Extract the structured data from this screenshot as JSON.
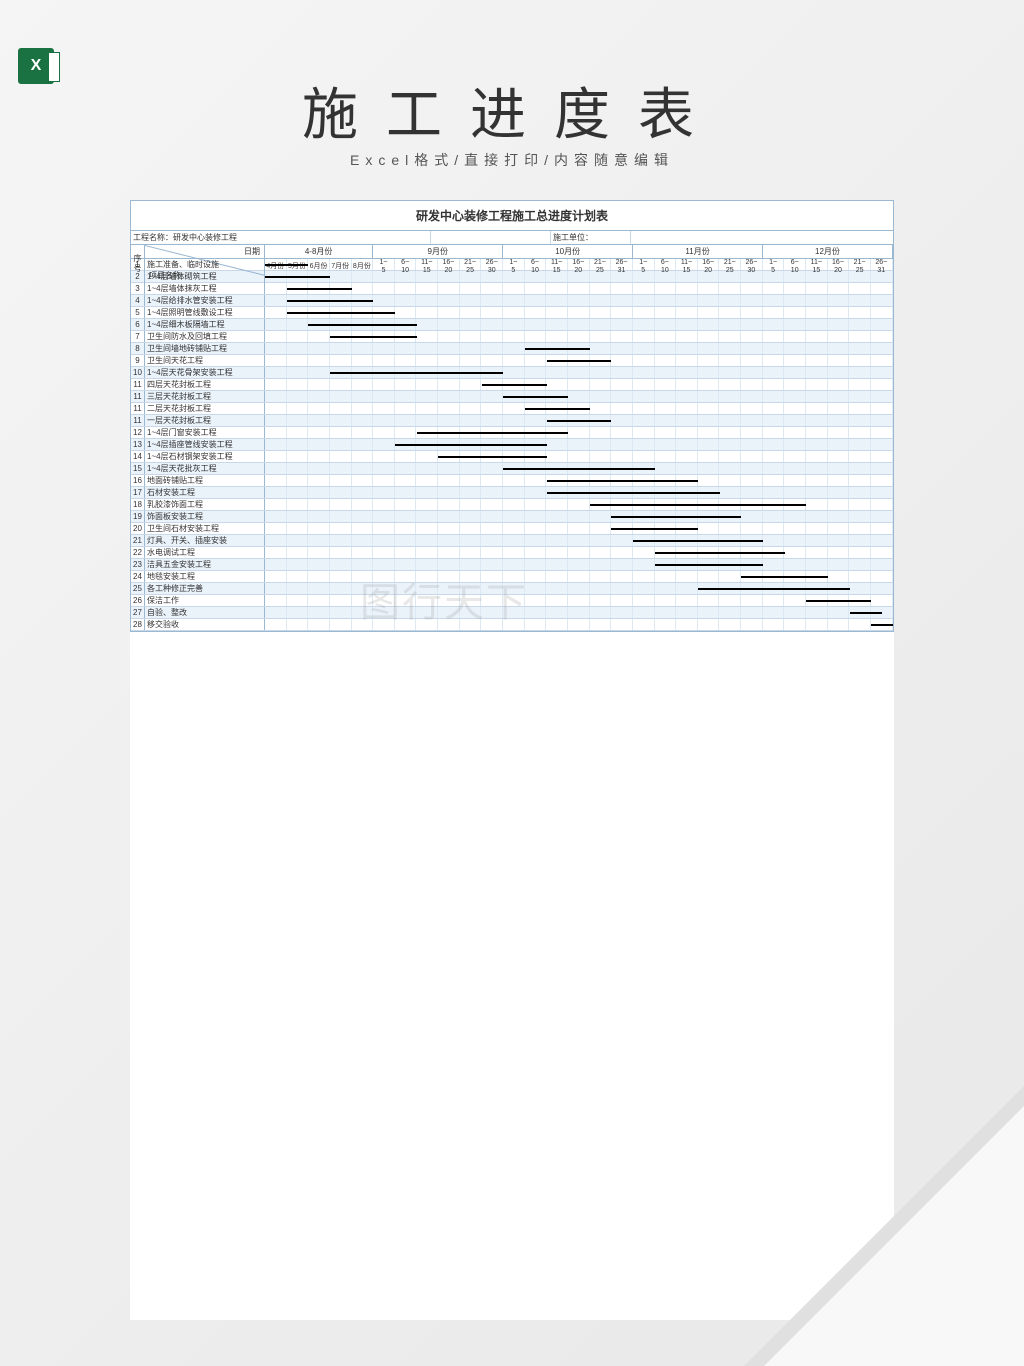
{
  "page": {
    "title": "施工进度表",
    "subtitle": "Excel格式/直接打印/内容随意编辑"
  },
  "sheet": {
    "title": "研发中心装修工程施工总进度计划表",
    "project_label": "工程名称：研发中心装修工程",
    "unit_label": "施工单位：",
    "seq_header": "序号",
    "name_header": "项目名称",
    "date_header": "日期",
    "months": [
      {
        "label": "4-8月份",
        "periods": [
          "4月份",
          "5月份",
          "6月份",
          "7月份",
          "8月份"
        ],
        "span": 5
      },
      {
        "label": "9月份",
        "periods": [
          "1~5",
          "6~10",
          "11~15",
          "16~20",
          "21~25",
          "26~30"
        ],
        "span": 6
      },
      {
        "label": "10月份",
        "periods": [
          "1~5",
          "6~10",
          "11~15",
          "16~20",
          "21~25",
          "26~31"
        ],
        "span": 6
      },
      {
        "label": "11月份",
        "periods": [
          "1~5",
          "6~10",
          "11~15",
          "16~20",
          "21~25",
          "26~30"
        ],
        "span": 6
      },
      {
        "label": "12月份",
        "periods": [
          "1~5",
          "6~10",
          "11~15",
          "16~20",
          "21~25",
          "26~31"
        ],
        "span": 6
      }
    ],
    "total_periods": 29,
    "rows": [
      {
        "seq": "1",
        "name": "施工准备、临时设施",
        "start": 0,
        "end": 2
      },
      {
        "seq": "2",
        "name": "1~4层墙体砌筑工程",
        "start": 0,
        "end": 3
      },
      {
        "seq": "3",
        "name": "1~4层墙体抹灰工程",
        "start": 1,
        "end": 4
      },
      {
        "seq": "4",
        "name": "1~4层给排水管安装工程",
        "start": 1,
        "end": 5
      },
      {
        "seq": "5",
        "name": "1~4层照明管线敷设工程",
        "start": 1,
        "end": 6
      },
      {
        "seq": "6",
        "name": "1~4层细木板隔墙工程",
        "start": 2,
        "end": 7
      },
      {
        "seq": "7",
        "name": "卫生间防水及回填工程",
        "start": 3,
        "end": 7
      },
      {
        "seq": "8",
        "name": "卫生间墙地砖铺贴工程",
        "start": 12,
        "end": 15
      },
      {
        "seq": "9",
        "name": "卫生间天花工程",
        "start": 13,
        "end": 16
      },
      {
        "seq": "10",
        "name": "1~4层天花骨架安装工程",
        "start": 3,
        "end": 11
      },
      {
        "seq": "11",
        "name": "四层天花封板工程",
        "start": 10,
        "end": 13
      },
      {
        "seq": "11",
        "name": "三层天花封板工程",
        "start": 11,
        "end": 14
      },
      {
        "seq": "11",
        "name": "二层天花封板工程",
        "start": 12,
        "end": 15
      },
      {
        "seq": "11",
        "name": "一层天花封板工程",
        "start": 13,
        "end": 16
      },
      {
        "seq": "12",
        "name": "1~4层门窗安装工程",
        "start": 7,
        "end": 14
      },
      {
        "seq": "13",
        "name": "1~4层插座管线安装工程",
        "start": 6,
        "end": 13
      },
      {
        "seq": "14",
        "name": "1~4层石材钢架安装工程",
        "start": 8,
        "end": 13
      },
      {
        "seq": "15",
        "name": "1~4层天花批灰工程",
        "start": 11,
        "end": 18
      },
      {
        "seq": "16",
        "name": "地面砖铺贴工程",
        "start": 13,
        "end": 20
      },
      {
        "seq": "17",
        "name": "石材安装工程",
        "start": 13,
        "end": 21
      },
      {
        "seq": "18",
        "name": "乳胶漆饰面工程",
        "start": 15,
        "end": 25
      },
      {
        "seq": "19",
        "name": "饰面板安装工程",
        "start": 16,
        "end": 22
      },
      {
        "seq": "20",
        "name": "卫生间石材安装工程",
        "start": 16,
        "end": 20
      },
      {
        "seq": "21",
        "name": "灯具、开关、插座安装",
        "start": 17,
        "end": 23
      },
      {
        "seq": "22",
        "name": "水电调试工程",
        "start": 18,
        "end": 24
      },
      {
        "seq": "23",
        "name": "洁具五金安装工程",
        "start": 18,
        "end": 23
      },
      {
        "seq": "24",
        "name": "地毯安装工程",
        "start": 22,
        "end": 26
      },
      {
        "seq": "25",
        "name": "各工种修正完善",
        "start": 20,
        "end": 27
      },
      {
        "seq": "26",
        "name": "保洁工作",
        "start": 25,
        "end": 28
      },
      {
        "seq": "27",
        "name": "自验、整改",
        "start": 27,
        "end": 28.5
      },
      {
        "seq": "28",
        "name": "移交验收",
        "start": 28,
        "end": 29
      }
    ]
  },
  "watermark": "图行天下",
  "colors": {
    "border": "#9bb8d3",
    "light_border": "#c8d8e8",
    "row_alt": "#eaf2fa",
    "bar": "#000000",
    "excel_green": "#1a7243"
  }
}
